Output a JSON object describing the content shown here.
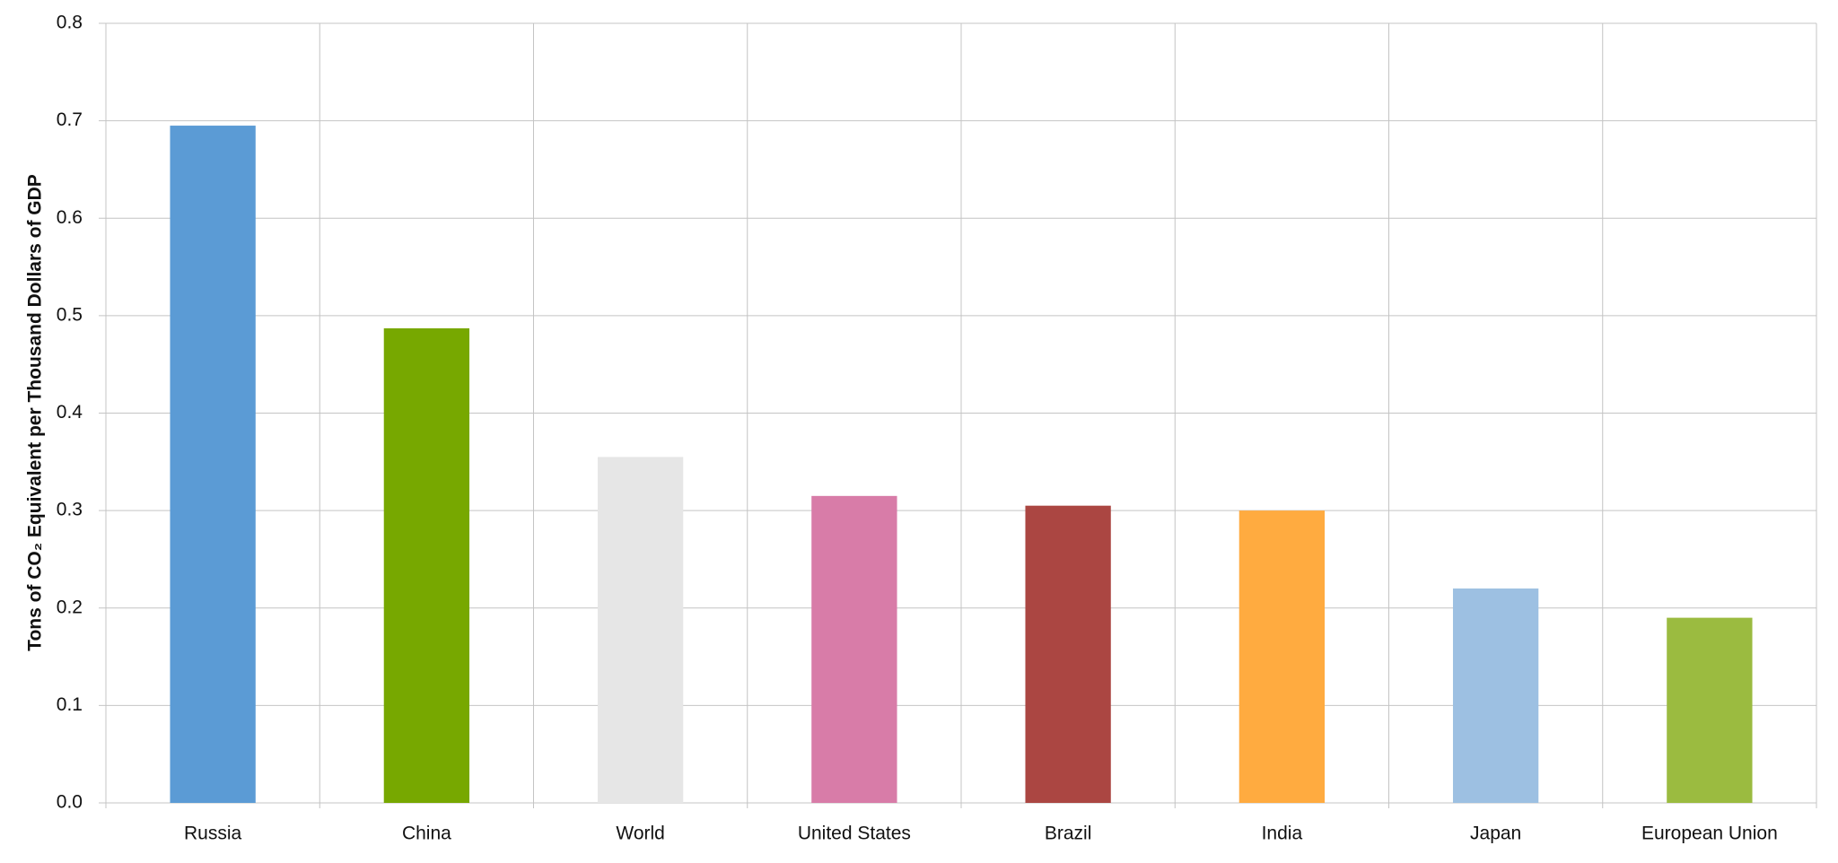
{
  "chart_data": {
    "type": "bar",
    "y_label": "Tons of CO₂ Equivalent per Thousand Dollars of GDP",
    "categories": [
      "Russia",
      "China",
      "World",
      "United States",
      "Brazil",
      "India",
      "Japan",
      "European Union"
    ],
    "values": [
      0.695,
      0.487,
      0.355,
      0.315,
      0.305,
      0.3,
      0.22,
      0.19
    ],
    "colors": [
      "#5b9bd5",
      "#77a800",
      "#e6e6e6",
      "#d87ca8",
      "#ab4642",
      "#ffab40",
      "#9dc0e2",
      "#9bbb40"
    ],
    "ylim": [
      0,
      0.8
    ],
    "yticks": [
      {
        "value": 0,
        "label": "0.0"
      },
      0.1,
      0.2,
      0.3,
      0.4,
      0.5,
      0.6,
      0.7,
      0.8
    ],
    "grid": true
  }
}
